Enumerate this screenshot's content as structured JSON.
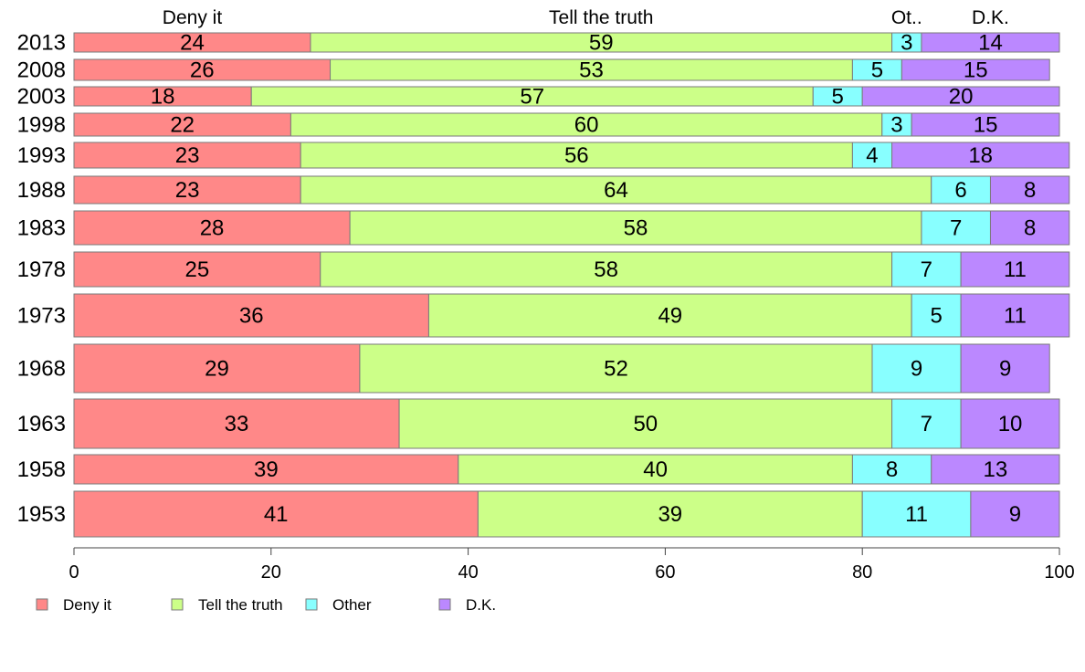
{
  "chart_data": {
    "type": "bar",
    "orientation": "horizontal",
    "stacked": true,
    "title": "",
    "xlabel": "",
    "ylabel": "",
    "xlim": [
      0,
      100
    ],
    "x_ticks": [
      "0",
      "20",
      "40",
      "60",
      "80",
      "100"
    ],
    "grid": false,
    "legend_position": "bottom",
    "categories": [
      "2013",
      "2008",
      "2003",
      "1998",
      "1993",
      "1988",
      "1983",
      "1978",
      "1973",
      "1968",
      "1963",
      "1958",
      "1953"
    ],
    "series": [
      {
        "name": "Deny it",
        "top_label": "Deny it",
        "color": "#ff8888",
        "values": [
          24,
          26,
          18,
          22,
          23,
          23,
          28,
          25,
          36,
          29,
          33,
          39,
          41
        ]
      },
      {
        "name": "Tell the truth",
        "top_label": "Tell the truth",
        "color": "#ccff88",
        "values": [
          59,
          53,
          57,
          60,
          56,
          64,
          58,
          58,
          49,
          52,
          50,
          40,
          39
        ]
      },
      {
        "name": "Other",
        "top_label": "Ot..",
        "color": "#88ffff",
        "values": [
          3,
          5,
          5,
          3,
          4,
          6,
          7,
          7,
          5,
          9,
          7,
          8,
          11
        ]
      },
      {
        "name": "D.K.",
        "top_label": "D.K.",
        "color": "#bb88ff",
        "values": [
          14,
          15,
          20,
          15,
          18,
          8,
          8,
          11,
          11,
          9,
          10,
          13,
          9
        ]
      }
    ]
  }
}
